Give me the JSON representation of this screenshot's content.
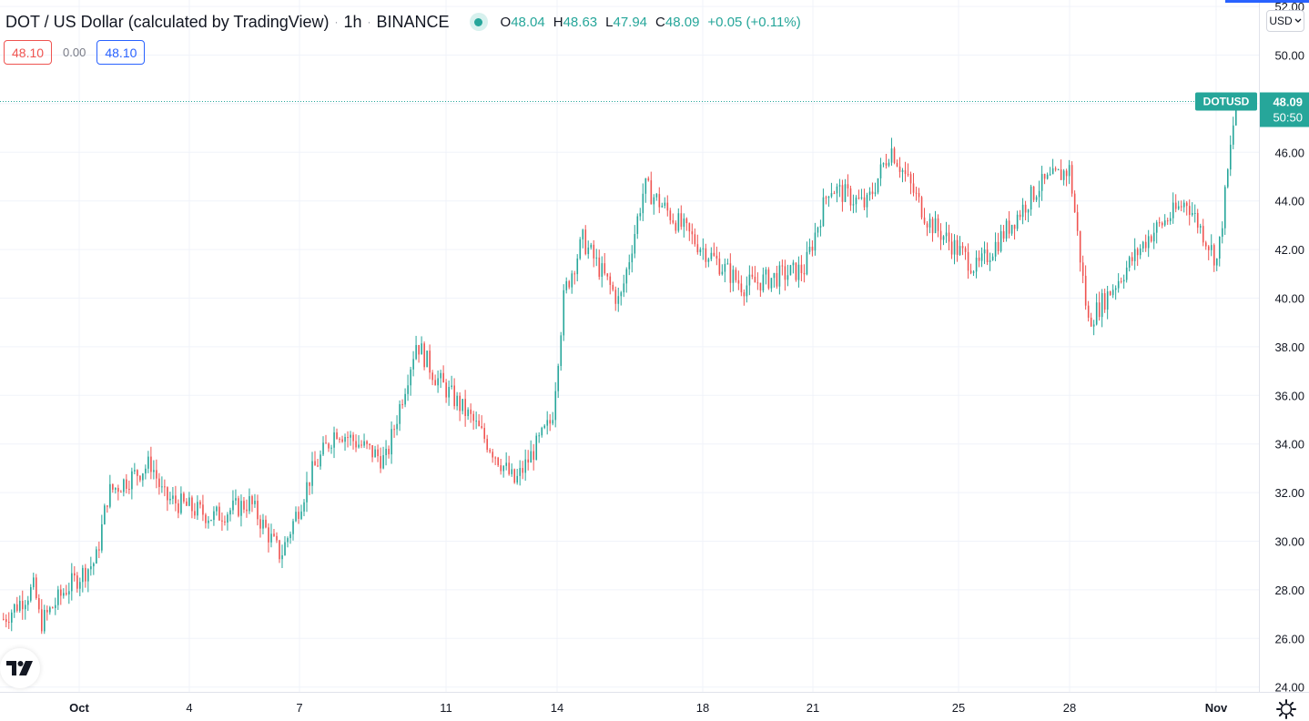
{
  "legend": {
    "title": "DOT / US Dollar (calculated by TradingView)",
    "interval": "1h",
    "exchange": "BINANCE",
    "o_label": "O",
    "o": "48.04",
    "h_label": "H",
    "h": "48.63",
    "l_label": "L",
    "l": "47.94",
    "c_label": "C",
    "c": "48.09",
    "change": "+0.05 (+0.11%)"
  },
  "quote": {
    "sell": "48.10",
    "spread": "0.00",
    "buy": "48.10"
  },
  "currency": "USD",
  "price_label": {
    "symbol": "DOTUSD",
    "price": "48.09",
    "countdown": "50:50"
  },
  "colors": {
    "up": "#26a69a",
    "down": "#ef5350",
    "grid": "#f0f3fa",
    "axis_text": "#131722"
  },
  "icons": {
    "logo": "tradingview-logo-icon",
    "settings": "gear-icon",
    "currency": "chevron-down-icon"
  },
  "chart_data": {
    "type": "candlestick",
    "interval": "1h",
    "last_price": 48.09,
    "y_ticks": [
      "52.00",
      "50.00",
      "48.00",
      "46.00",
      "44.00",
      "42.00",
      "40.00",
      "38.00",
      "36.00",
      "34.00",
      "32.00",
      "30.00",
      "28.00",
      "26.00",
      "24.00"
    ],
    "x_ticks": [
      "Oct",
      "4",
      "7",
      "11",
      "14",
      "18",
      "21",
      "25",
      "28",
      "Nov"
    ],
    "ylim": [
      24,
      52
    ],
    "grid": true,
    "price_path": [
      [
        0,
        26.8
      ],
      [
        0.025,
        28.1
      ],
      [
        0.03,
        26.6
      ],
      [
        0.05,
        28.0
      ],
      [
        0.075,
        29.2
      ],
      [
        0.085,
        32.0
      ],
      [
        0.12,
        33.2
      ],
      [
        0.13,
        31.8
      ],
      [
        0.17,
        31.0
      ],
      [
        0.2,
        31.6
      ],
      [
        0.225,
        29.4
      ],
      [
        0.25,
        32.8
      ],
      [
        0.27,
        34.6
      ],
      [
        0.31,
        33.3
      ],
      [
        0.335,
        38.2
      ],
      [
        0.35,
        36.8
      ],
      [
        0.38,
        35.0
      ],
      [
        0.415,
        32.4
      ],
      [
        0.445,
        35.0
      ],
      [
        0.455,
        40.2
      ],
      [
        0.47,
        42.4
      ],
      [
        0.5,
        39.8
      ],
      [
        0.52,
        44.6
      ],
      [
        0.56,
        42.4
      ],
      [
        0.6,
        40.5
      ],
      [
        0.65,
        41.2
      ],
      [
        0.67,
        44.6
      ],
      [
        0.7,
        43.8
      ],
      [
        0.72,
        46.2
      ],
      [
        0.75,
        43.2
      ],
      [
        0.79,
        41.2
      ],
      [
        0.84,
        44.6
      ],
      [
        0.865,
        45.3
      ],
      [
        0.88,
        39.0
      ],
      [
        0.93,
        42.6
      ],
      [
        0.96,
        44.0
      ],
      [
        0.985,
        41.5
      ],
      [
        1.0,
        48.09
      ]
    ]
  }
}
